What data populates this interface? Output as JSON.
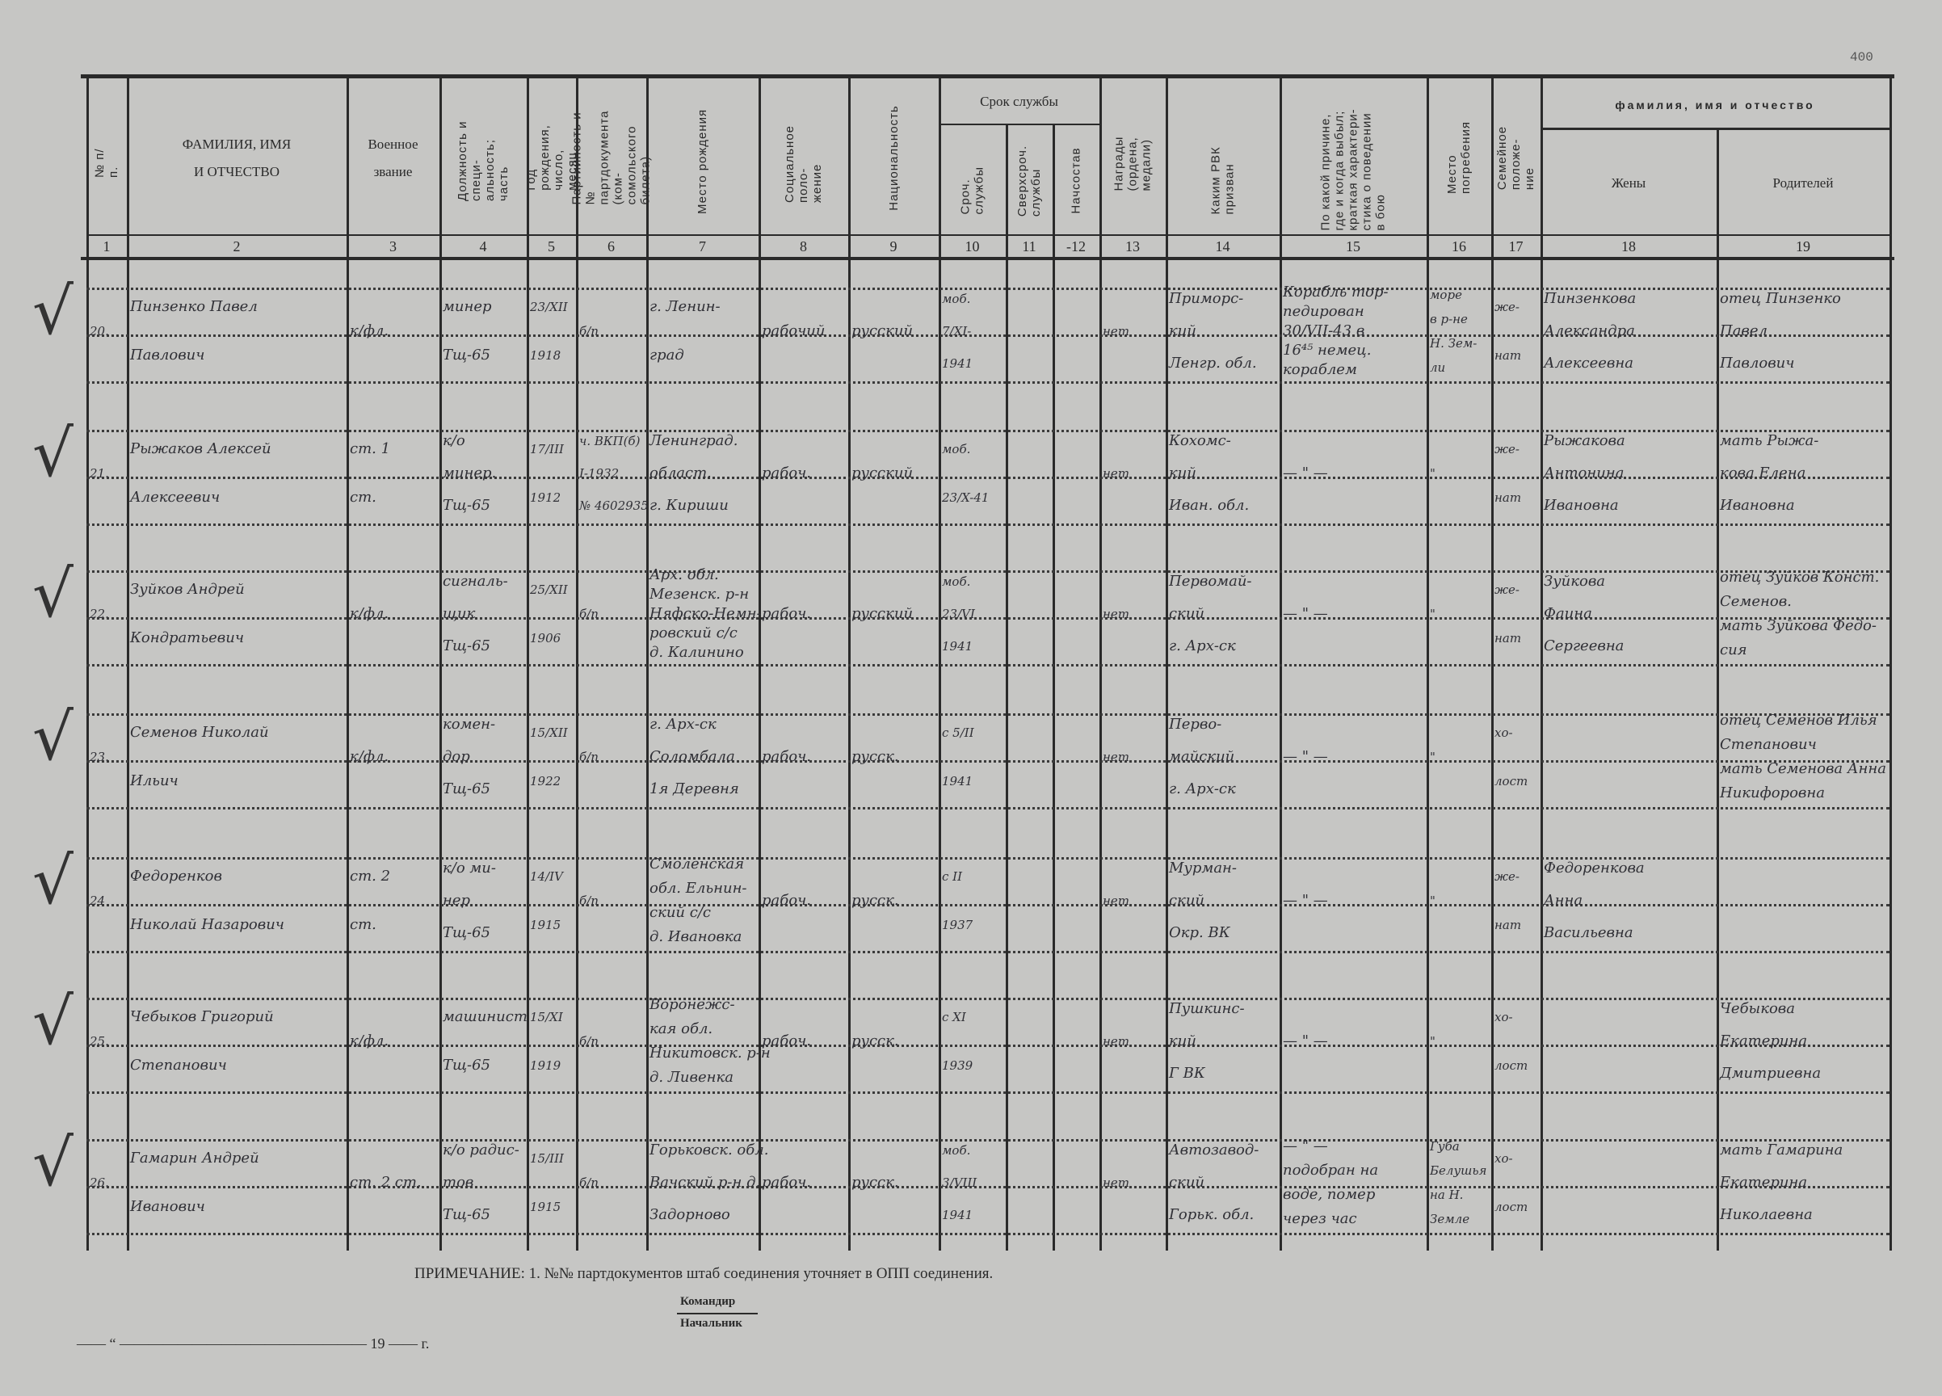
{
  "corner_stamp": "400",
  "header": {
    "group_service": "Срок службы",
    "group_names": "фамилия, имя и отчество",
    "columns": [
      {
        "num": "1",
        "label": "№ п/п."
      },
      {
        "num": "2",
        "label": "ФАМИЛИЯ, ИМЯ\n\nИ ОТЧЕСТВО"
      },
      {
        "num": "3",
        "label": "Военное\n\nзвание"
      },
      {
        "num": "4",
        "label": "Должность и специ-\nальность; часть"
      },
      {
        "num": "5",
        "label": "Год рождения,\nчисло, месяц"
      },
      {
        "num": "6",
        "label": "Партийность и №\nпартдокумента (ком-\nсомольского билета)"
      },
      {
        "num": "7",
        "label": "Место рождения"
      },
      {
        "num": "8",
        "label": "Социальное поло-\nжение"
      },
      {
        "num": "9",
        "label": "Национальность"
      },
      {
        "num": "10",
        "label": "Сроч. службы"
      },
      {
        "num": "11",
        "label": "Сверхсроч.\nслужбы"
      },
      {
        "num": "-12",
        "label": "Начсостав"
      },
      {
        "num": "13",
        "label": "Награды (ордена,\nмедали)"
      },
      {
        "num": "14",
        "label": "Каким РВК призван"
      },
      {
        "num": "15",
        "label": "По какой причине,\nгде и когда выбыл;\nкраткая характери-\nстика о поведении\nв бою"
      },
      {
        "num": "16",
        "label": "Место погребения"
      },
      {
        "num": "17",
        "label": "Семейное положе-\nние"
      },
      {
        "num": "18",
        "label": "Жены"
      },
      {
        "num": "19",
        "label": "Родителей"
      }
    ]
  },
  "records": [
    {
      "check": "√",
      "cells": [
        [
          "20."
        ],
        [
          "Пинзенко Павел",
          "Павлович"
        ],
        [
          "к/фл."
        ],
        [
          "минер",
          "Тщ-65"
        ],
        [
          "23/XII",
          "1918"
        ],
        [
          "б/п"
        ],
        [
          "г. Ленин-",
          "град"
        ],
        [
          "рабочий"
        ],
        [
          "русский"
        ],
        [
          "моб.",
          "7/XI-",
          "1941"
        ],
        [],
        [],
        [
          "нет"
        ],
        [
          "Приморс-",
          "кий",
          "Ленгр. обл."
        ],
        [
          "Корабль тор-",
          "педирован",
          "30/VII-43 в",
          "16⁴⁵ немец.",
          "кораблем"
        ],
        [
          "море",
          "в р-не",
          "Н. Зем-",
          "ли"
        ],
        [
          "же-",
          "нат"
        ],
        [
          "Пинзенкова",
          "Александра",
          "Алексеевна"
        ],
        [
          "отец Пинзенко",
          "Павел",
          "Павлович"
        ]
      ]
    },
    {
      "check": "√",
      "cells": [
        [
          "21."
        ],
        [
          "Рыжаков Алексей",
          "Алексеевич"
        ],
        [
          "ст. 1",
          "ст."
        ],
        [
          "к/о",
          "минер.",
          "Тщ-65"
        ],
        [
          "17/III",
          "1912"
        ],
        [
          "ч. ВКП(б)",
          "I-1932",
          "№ 4602935"
        ],
        [
          "Ленинград.",
          "област.",
          "г. Кириши"
        ],
        [
          "рабоч."
        ],
        [
          "русский"
        ],
        [
          "моб.",
          "23/X-41"
        ],
        [],
        [],
        [
          "нет"
        ],
        [
          "Кохомс-",
          "кий",
          "Иван. обл."
        ],
        [
          "— \" —"
        ],
        [
          "\""
        ],
        [
          "же-",
          "нат"
        ],
        [
          "Рыжакова",
          "Антонина",
          "Ивановна"
        ],
        [
          "мать Рыжа-",
          "кова Елена",
          "Ивановна"
        ]
      ]
    },
    {
      "check": "√",
      "cells": [
        [
          "22."
        ],
        [
          "Зуйков Андрей",
          "Кондратьевич"
        ],
        [
          "к/фл."
        ],
        [
          "сигналь-",
          "щик",
          "Тщ-65"
        ],
        [
          "25/XII",
          "1906"
        ],
        [
          "б/п"
        ],
        [
          "Арх. обл.",
          "Мезенск. р-н",
          "Няфско-Немн-",
          "ровский с/с",
          "д. Калинино"
        ],
        [
          "рабоч."
        ],
        [
          "русский"
        ],
        [
          "моб.",
          "23/VI",
          "1941"
        ],
        [],
        [],
        [
          "нет"
        ],
        [
          "Первомай-",
          "ский",
          "г. Арх-ск"
        ],
        [
          "— \" —"
        ],
        [
          "\""
        ],
        [
          "же-",
          "нат"
        ],
        [
          "Зуйкова",
          "Фаина",
          "Сергеевна"
        ],
        [
          "отец Зуйков Конст.",
          "Семенов.",
          "мать Зуйкова Федо-",
          "сия"
        ]
      ]
    },
    {
      "check": "√",
      "cells": [
        [
          "23."
        ],
        [
          "Семенов Николай",
          "Ильич"
        ],
        [
          "к/фл."
        ],
        [
          "комен-",
          "дор",
          "Тщ-65"
        ],
        [
          "15/XII",
          "1922"
        ],
        [
          "б/п"
        ],
        [
          "г. Арх-ск",
          "Соломбала",
          "1я Деревня"
        ],
        [
          "рабоч."
        ],
        [
          "русск."
        ],
        [
          "с 5/II",
          "1941"
        ],
        [],
        [],
        [
          "нет"
        ],
        [
          "Перво-",
          "майский",
          "г. Арх-ск"
        ],
        [
          "— \" —"
        ],
        [
          "\""
        ],
        [
          "хо-",
          "лост"
        ],
        [],
        [
          "отец Семенов Илья",
          "Степанович",
          "мать Семенова Анна",
          "Никифоровна"
        ]
      ]
    },
    {
      "check": "√",
      "cells": [
        [
          "24"
        ],
        [
          "Федоренков",
          "Николай Назарович"
        ],
        [
          "ст. 2",
          "ст."
        ],
        [
          "к/о ми-",
          "нер",
          "Тщ-65"
        ],
        [
          "14/IV",
          "1915"
        ],
        [
          "б/п"
        ],
        [
          "Смоленская",
          "обл. Ельнин-",
          "ский с/с",
          "д. Ивановка"
        ],
        [
          "рабоч."
        ],
        [
          "русск."
        ],
        [
          "с II",
          "1937"
        ],
        [],
        [],
        [
          "нет"
        ],
        [
          "Мурман-",
          "ский",
          "Окр. ВК"
        ],
        [
          "— \" —"
        ],
        [
          "\""
        ],
        [
          "же-",
          "нат"
        ],
        [
          "Федоренкова",
          "Анна",
          "Васильевна"
        ],
        []
      ]
    },
    {
      "check": "√",
      "cells": [
        [
          "25."
        ],
        [
          "Чебыков Григорий",
          "Степанович"
        ],
        [
          "к/фл."
        ],
        [
          "машинист",
          "Тщ-65"
        ],
        [
          "15/XI",
          "1919"
        ],
        [
          "б/п"
        ],
        [
          "Воронежс-",
          "кая обл.",
          "Никитовск. р-н",
          "д. Ливенка"
        ],
        [
          "рабоч."
        ],
        [
          "русск."
        ],
        [
          "с XI",
          "1939"
        ],
        [],
        [],
        [
          "нет"
        ],
        [
          "Пушкинс-",
          "кий",
          "Г ВК"
        ],
        [
          "— \" —"
        ],
        [
          "\""
        ],
        [
          "хо-",
          "лост"
        ],
        [],
        [
          "Чебыкова",
          "Екатерина",
          "Дмитриевна"
        ]
      ]
    },
    {
      "check": "√",
      "cells": [
        [
          "26."
        ],
        [
          "Гамарин Андрей",
          "Иванович"
        ],
        [
          "ст. 2 ст."
        ],
        [
          "к/о радис-",
          "тов",
          "Тщ-65"
        ],
        [
          "15/III",
          "1915"
        ],
        [
          "б/п"
        ],
        [
          "Горьковск. обл.",
          "Вачский р-н д.",
          "Задорново"
        ],
        [
          "рабоч."
        ],
        [
          "русск."
        ],
        [
          "моб.",
          "3/VIII",
          "1941"
        ],
        [],
        [],
        [
          "нет"
        ],
        [
          "Автозавод-",
          "ский",
          "Горьк. обл."
        ],
        [
          "— \" —",
          "подобран на",
          "воде, помер",
          "через час"
        ],
        [
          "Губа",
          "Белушья",
          "на Н.",
          "Земле"
        ],
        [
          "хо-",
          "лост"
        ],
        [],
        [
          "мать Гамарина",
          "Екатерина",
          "Николаевна"
        ]
      ]
    }
  ],
  "footer": {
    "note": "ПРИМЕЧАНИЕ: 1. №№ партдокументов штаб соединения уточняет в ОПП соединения.",
    "commander": "Командир",
    "chief": "Начальник",
    "date_line": "—— “ ————————————————— 19 —— г."
  }
}
